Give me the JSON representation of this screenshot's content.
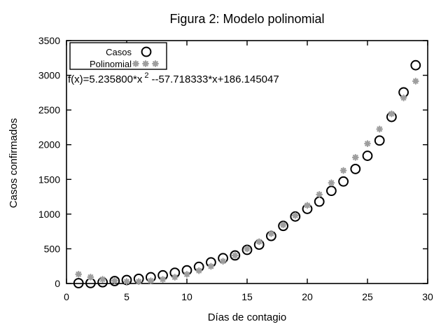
{
  "figure": {
    "background": "#ffffff",
    "text_color": "#000000"
  },
  "chart_data": {
    "type": "scatter",
    "title": "Figura 2: Modelo polinomial",
    "xlabel": "Días de contagio",
    "ylabel": "Casos confirmados",
    "xlim": [
      0,
      30
    ],
    "ylim": [
      0,
      3500
    ],
    "x_ticks": [
      0,
      5,
      10,
      15,
      20,
      25,
      30
    ],
    "y_ticks": [
      0,
      500,
      1000,
      1500,
      2000,
      2500,
      3000,
      3500
    ],
    "grid": false,
    "legend_position": "top-left",
    "annotation": {
      "prefix": "f(x)=5.235800*x",
      "sup": "2",
      "suffix": "--57.718333*x+186.145047",
      "full_text": "f(x)=5.235800*x 2 --57.718333*x+186.145047"
    },
    "x": [
      1,
      2,
      3,
      4,
      5,
      6,
      7,
      8,
      9,
      10,
      11,
      12,
      13,
      14,
      15,
      16,
      17,
      18,
      19,
      20,
      21,
      22,
      23,
      24,
      25,
      26,
      27,
      28,
      29
    ],
    "series": [
      {
        "name": "Casos",
        "marker": "circle",
        "color": "#000000",
        "values": [
          5,
          6,
          18,
          35,
          50,
          68,
          90,
          118,
          155,
          190,
          240,
          305,
          365,
          405,
          485,
          560,
          685,
          830,
          965,
          1075,
          1180,
          1335,
          1470,
          1650,
          1840,
          2060,
          2400,
          2755,
          3145
        ]
      },
      {
        "name": "Polinomial",
        "marker": "asterisk",
        "color": "#9e9e9e",
        "values": [
          133.7,
          91.7,
          60.1,
          39.0,
          28.4,
          28.3,
          38.7,
          59.5,
          90.8,
          132.5,
          184.8,
          247.5,
          320.7,
          404.3,
          498.4,
          603.0,
          718.1,
          843.6,
          979.6,
          1126.1,
          1283.0,
          1450.5,
          1628.4,
          1816.7,
          2015.6,
          2224.9,
          2444.6,
          2674.9,
          2915.6
        ]
      }
    ]
  }
}
